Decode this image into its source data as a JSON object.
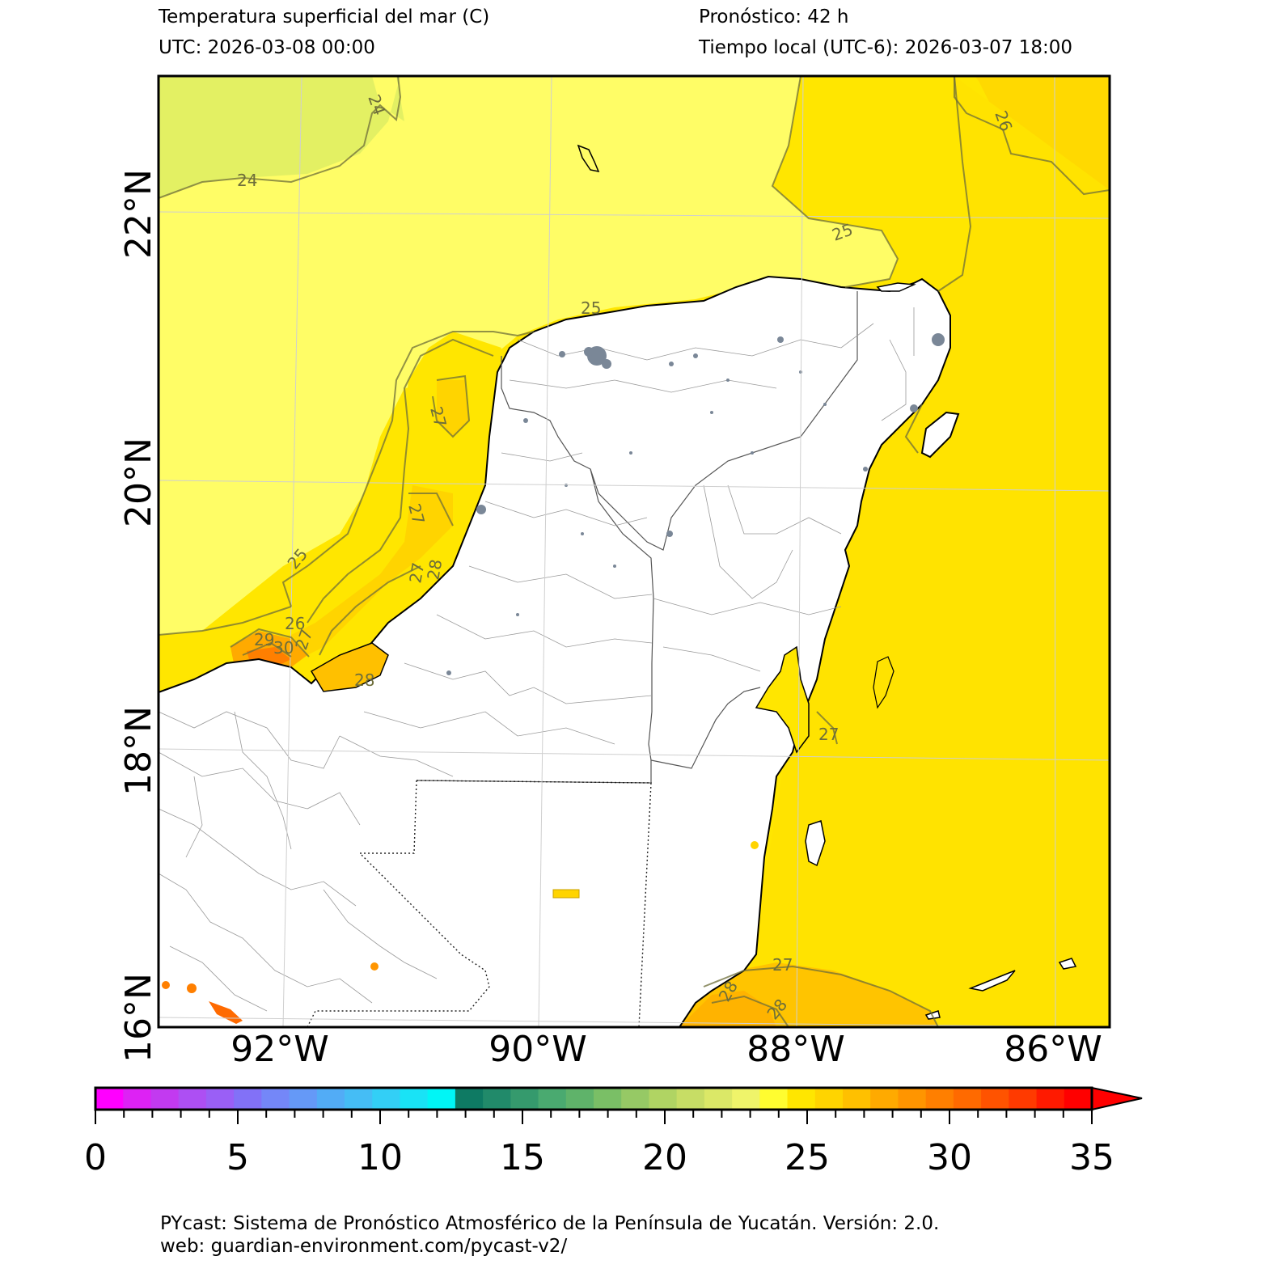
{
  "header": {
    "title": "Temperatura superficial del mar (C)",
    "utc": "UTC:  2026-03-08 00:00",
    "forecast": "Pronóstico: 42 h",
    "local_time": "Tiempo local (UTC-6): 2026-03-07 18:00"
  },
  "map": {
    "lat_labels": [
      "22°N",
      "20°N",
      "18°N",
      "16°N"
    ],
    "lon_labels": [
      "92°W",
      "90°W",
      "88°W",
      "86°W"
    ],
    "contour_labels": [
      "24",
      "24",
      "26",
      "25",
      "25",
      "27",
      "27",
      "25",
      "26",
      "27",
      "28",
      "29",
      "30",
      "27",
      "28",
      "27",
      "27",
      "28",
      "28"
    ]
  },
  "colorbar": {
    "tick_labels": [
      "0",
      "5",
      "10",
      "15",
      "20",
      "25",
      "30",
      "35"
    ],
    "colors": [
      "#ff00ff",
      "#dd22f4",
      "#c23af0",
      "#ad4ff3",
      "#9a5ff6",
      "#8271f7",
      "#7487f8",
      "#6599f7",
      "#52acf6",
      "#45bdf5",
      "#33cff6",
      "#19e3f6",
      "#00f6f6",
      "#0e7a63",
      "#218a6a",
      "#359a6d",
      "#4aaa70",
      "#5fb36a",
      "#7abf66",
      "#96c965",
      "#b0d463",
      "#c7dd65",
      "#dbe867",
      "#eff46a",
      "#fffd30",
      "#ffe600",
      "#ffd400",
      "#ffc000",
      "#ffaa00",
      "#ff9500",
      "#ff7f00",
      "#ff6a00",
      "#ff5300",
      "#ff3a00",
      "#ff1a00",
      "#ff0000"
    ]
  },
  "footer": {
    "line1": "PYcast: Sistema de Pronóstico Atmosférico de la Península de Yucatán. Versión: 2.0.",
    "line2": "web: guardian-environment.com/pycast-v2/"
  }
}
